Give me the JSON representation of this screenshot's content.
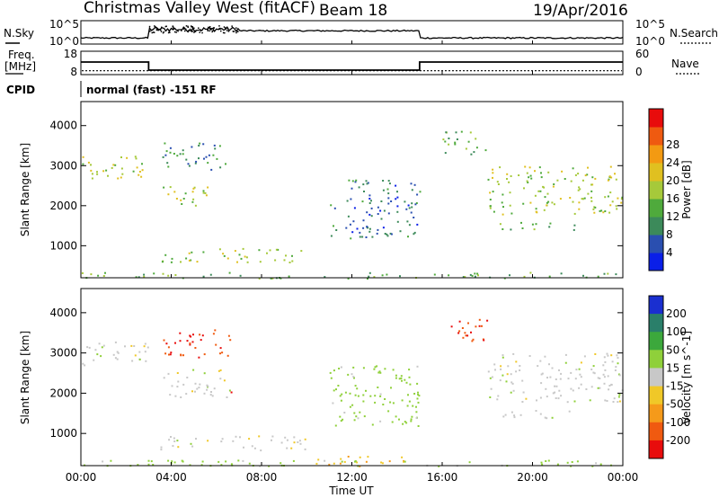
{
  "header": {
    "station": "Christmas Valley West (fitACF)",
    "beam": "Beam 18",
    "date": "19/Apr/2016"
  },
  "strip_panels": {
    "nsky_label": "N.Sky",
    "nsky_ticks": [
      "10^5",
      "10^0"
    ],
    "nsearch_label": "N.Search",
    "nsearch_ticks": [
      "10^5",
      "10^0"
    ],
    "freq_label_line1": "Freq.",
    "freq_label_line2": "[MHz]",
    "freq_ticks": [
      "18",
      "8"
    ],
    "nave_label": "Nave",
    "nave_ticks": [
      "60",
      "0"
    ],
    "cpid_label": "CPID",
    "cpid_text": "normal (fast) -151 RF"
  },
  "chart_data": [
    {
      "type": "heatmap",
      "name": "power-panel",
      "ylabel": "Slant Range [km]",
      "xlabel": "",
      "ylim": [
        200,
        4600
      ],
      "yticks": [
        1000,
        2000,
        3000,
        4000
      ],
      "colorbar": {
        "label": "Power [dB]",
        "ticks": [
          "4",
          "8",
          "12",
          "16",
          "20",
          "24",
          "28"
        ],
        "colors": [
          "#0a1fe8",
          "#2a4fb0",
          "#3c8a5a",
          "#4faa3c",
          "#a6c93a",
          "#e0c020",
          "#f39a12",
          "#ef5a10",
          "#e80c0c"
        ]
      },
      "features": [
        {
          "t_start": 0.0,
          "t_end": 3.0,
          "r_start": 2700,
          "r_end": 3300,
          "level": 16
        },
        {
          "t_start": 3.6,
          "t_end": 5.6,
          "r_start": 1900,
          "r_end": 2500,
          "level": 16
        },
        {
          "t_start": 3.6,
          "t_end": 6.6,
          "r_start": 2900,
          "r_end": 3600,
          "level": 8
        },
        {
          "t_start": 3.5,
          "t_end": 10.0,
          "r_start": 600,
          "r_end": 950,
          "level": 16
        },
        {
          "t_start": 11.0,
          "t_end": 15.0,
          "r_start": 1200,
          "r_end": 2700,
          "level": 6
        },
        {
          "t_start": 16.0,
          "t_end": 18.0,
          "r_start": 3300,
          "r_end": 3900,
          "level": 12
        },
        {
          "t_start": 18.0,
          "t_end": 24.0,
          "r_start": 1800,
          "r_end": 3000,
          "level": 16
        },
        {
          "t_start": 18.5,
          "t_end": 22.0,
          "r_start": 1400,
          "r_end": 1600,
          "level": 10
        },
        {
          "t_start": 0.0,
          "t_end": 24.0,
          "r_start": 200,
          "r_end": 350,
          "level": 12
        }
      ]
    },
    {
      "type": "heatmap",
      "name": "velocity-panel",
      "ylabel": "Slant Range [km]",
      "xlabel": "Time UT",
      "ylim": [
        200,
        4600
      ],
      "yticks": [
        1000,
        2000,
        3000,
        4000
      ],
      "xticks": [
        "00:00",
        "04:00",
        "08:00",
        "12:00",
        "16:00",
        "20:00",
        "00:00"
      ],
      "colorbar": {
        "label": "Velocity [m s^-1]",
        "ticks": [
          "200",
          "100",
          "50",
          "15",
          "-15",
          "-50",
          "-100",
          "-200"
        ],
        "colors": [
          "#1a2fd0",
          "#2a7f6a",
          "#3ca83c",
          "#8fd03a",
          "#c8c8c8",
          "#f0c828",
          "#f59a1a",
          "#f05a10",
          "#e80c0c"
        ]
      },
      "features": [
        {
          "t_start": 0.0,
          "t_end": 3.0,
          "r_start": 2700,
          "r_end": 3300,
          "level": 0
        },
        {
          "t_start": 3.6,
          "t_end": 6.6,
          "r_start": 1900,
          "r_end": 2600,
          "level": 0
        },
        {
          "t_start": 3.6,
          "t_end": 6.6,
          "r_start": 2900,
          "r_end": 3600,
          "level": -200
        },
        {
          "t_start": 6.5,
          "t_end": 7.0,
          "r_start": 1950,
          "r_end": 2050,
          "level": -200
        },
        {
          "t_start": 3.5,
          "t_end": 10.0,
          "r_start": 600,
          "r_end": 950,
          "level": 0
        },
        {
          "t_start": 11.0,
          "t_end": 15.0,
          "r_start": 1200,
          "r_end": 2700,
          "level": 30
        },
        {
          "t_start": 16.0,
          "t_end": 18.0,
          "r_start": 3300,
          "r_end": 3900,
          "level": -200
        },
        {
          "t_start": 18.0,
          "t_end": 24.0,
          "r_start": 1800,
          "r_end": 3000,
          "level": 0
        },
        {
          "t_start": 18.5,
          "t_end": 22.0,
          "r_start": 1400,
          "r_end": 1600,
          "level": 0
        },
        {
          "t_start": 10.0,
          "t_end": 14.5,
          "r_start": 200,
          "r_end": 450,
          "level": -50
        },
        {
          "t_start": 0.0,
          "t_end": 24.0,
          "r_start": 200,
          "r_end": 350,
          "level": 30
        }
      ]
    }
  ],
  "strip_data": {
    "freq_steps": [
      {
        "t_start": 0,
        "t_end": 3,
        "freq": 14
      },
      {
        "t_start": 3,
        "t_end": 15,
        "freq": 9.5
      },
      {
        "t_start": 15,
        "t_end": 24,
        "freq": 14
      }
    ],
    "nave_level": 10
  }
}
